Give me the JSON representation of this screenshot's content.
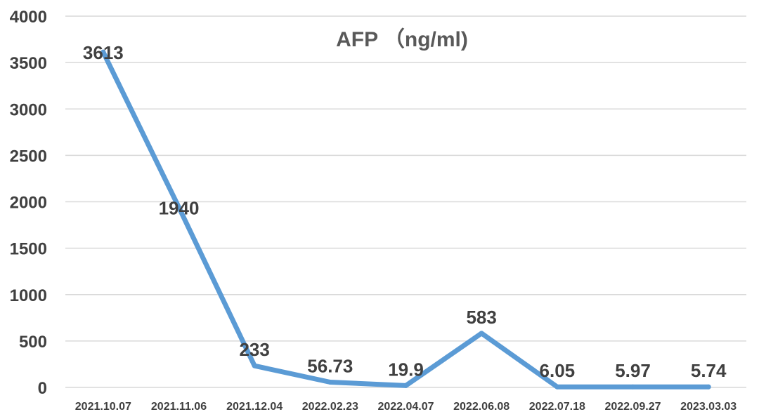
{
  "chart_data": {
    "type": "line",
    "title": "AFP （ng/ml)",
    "xlabel": "",
    "ylabel": "",
    "categories": [
      "2021.10.07",
      "2021.11.06",
      "2021.12.04",
      "2022.02.23",
      "2022.04.07",
      "2022.06.08",
      "2022.07.18",
      "2022.09.27",
      "2023.03.03"
    ],
    "series": [
      {
        "values": [
          3613,
          1940,
          233,
          56.73,
          19.9,
          583,
          6.05,
          5.97,
          5.74
        ]
      }
    ],
    "data_labels": [
      "3613",
      "1940",
      "233",
      "56.73",
      "19.9",
      "583",
      "6.05",
      "5.97",
      "5.74"
    ],
    "yticks": [
      0,
      500,
      1000,
      1500,
      2000,
      2500,
      3000,
      3500,
      4000
    ],
    "ylim": [
      0,
      4000
    ],
    "grid": true,
    "legend": "none",
    "colors": {
      "line": "#5b9bd5",
      "grid": "#d9d9d9",
      "text": "#404040",
      "title": "#595959"
    }
  }
}
